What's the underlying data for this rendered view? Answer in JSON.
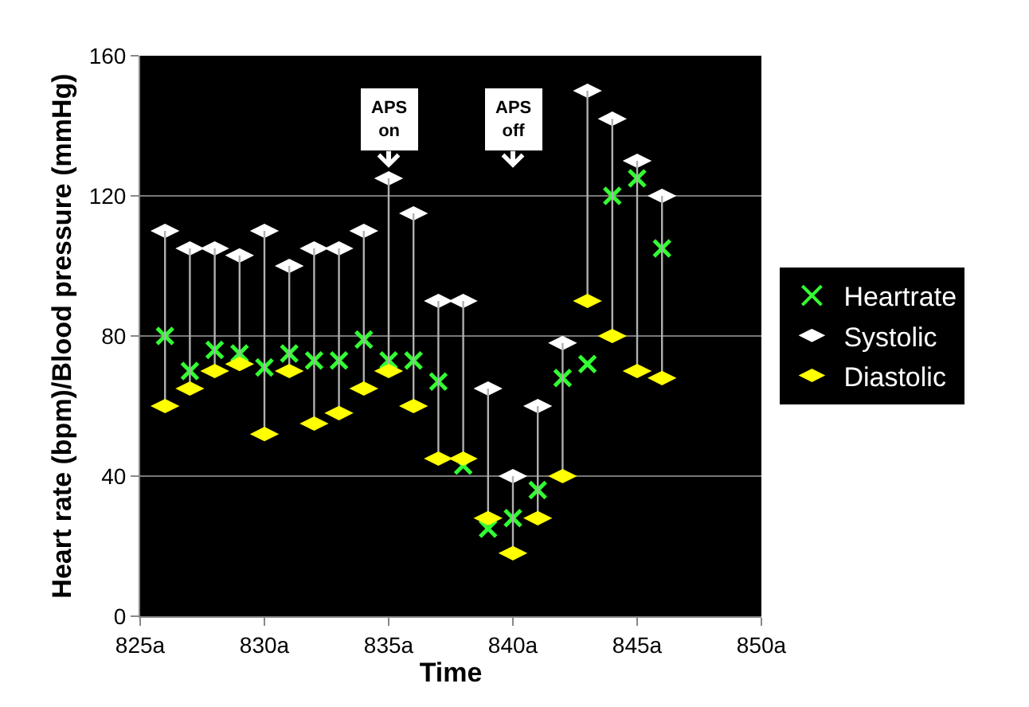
{
  "chart_data": {
    "type": "scatter",
    "xlabel": "Time",
    "ylabel": "Heart rate (bpm)/Blood pressure (mmHg)",
    "x": [
      826,
      827,
      828,
      829,
      830,
      831,
      832,
      833,
      834,
      835,
      836,
      837,
      838,
      839,
      840,
      841,
      842,
      843,
      844,
      845,
      846
    ],
    "series": [
      {
        "name": "Heartrate",
        "color": "#33ff33",
        "marker": "cross",
        "values": [
          80,
          70,
          76,
          75,
          71,
          75,
          73,
          73,
          79,
          73,
          73,
          67,
          43,
          25,
          28,
          36,
          68,
          72,
          120,
          125,
          105
        ]
      },
      {
        "name": "Systolic",
        "color": "#ffffff",
        "values": [
          110,
          105,
          105,
          103,
          110,
          100,
          105,
          105,
          110,
          125,
          115,
          90,
          90,
          65,
          40,
          60,
          78,
          150,
          142,
          130,
          120
        ]
      },
      {
        "name": "Diastolic",
        "color": "#ffff00",
        "values": [
          60,
          65,
          70,
          72,
          52,
          70,
          55,
          58,
          65,
          70,
          60,
          45,
          45,
          28,
          18,
          28,
          40,
          90,
          80,
          70,
          68
        ],
        "errors": [
          [
            60,
            110
          ],
          [
            65,
            105
          ],
          [
            70,
            105
          ],
          [
            72,
            103
          ],
          [
            52,
            110
          ],
          [
            70,
            100
          ],
          [
            55,
            105
          ],
          [
            58,
            105
          ],
          [
            65,
            110
          ],
          [
            70,
            125
          ],
          [
            60,
            115
          ],
          [
            45,
            90
          ],
          [
            45,
            90
          ],
          [
            28,
            65
          ],
          [
            18,
            40
          ],
          [
            28,
            60
          ],
          [
            40,
            78
          ],
          [
            90,
            150
          ],
          [
            80,
            142
          ],
          [
            70,
            130
          ],
          [
            68,
            120
          ]
        ]
      }
    ],
    "xlim": [
      825,
      850
    ],
    "xticks": [
      {
        "value": 825,
        "label": "825a"
      },
      {
        "value": 830,
        "label": "830a"
      },
      {
        "value": 835,
        "label": "835a"
      },
      {
        "value": 840,
        "label": "840a"
      },
      {
        "value": 845,
        "label": "845a"
      },
      {
        "value": 850,
        "label": "850a"
      }
    ],
    "ylim": [
      0,
      160
    ],
    "yticks": [
      0,
      40,
      80,
      120,
      160
    ],
    "grid": "y",
    "legend": "right",
    "annotations": [
      "APS\non",
      "APS\noff"
    ]
  }
}
